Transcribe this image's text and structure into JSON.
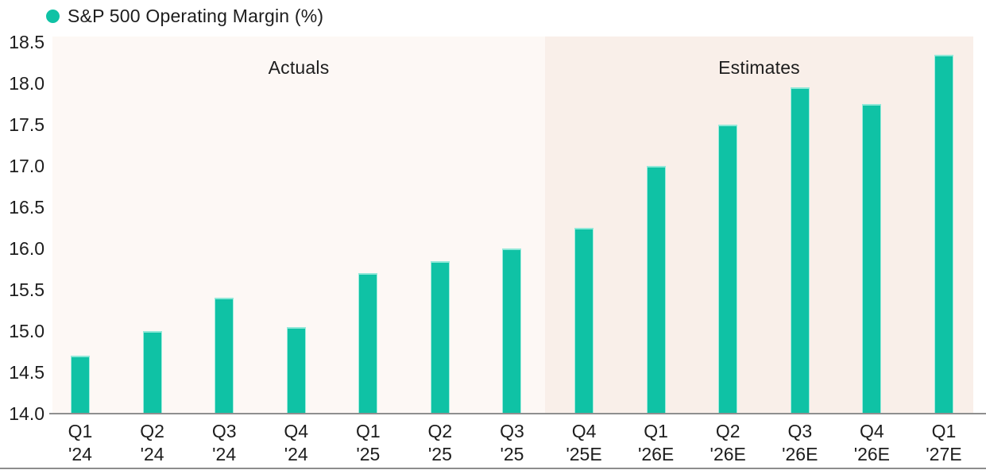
{
  "legend": {
    "label": "S&P 500 Operating Margin (%)",
    "marker_color": "#0fc2a5"
  },
  "regions": {
    "actuals": "Actuals",
    "estimates": "Estimates"
  },
  "chart_data": {
    "type": "bar",
    "title": "S&P 500 Operating Margin (%)",
    "legend_entries": [
      "S&P 500 Operating Margin (%)"
    ],
    "legend_position": "top-left",
    "categories": [
      "Q1 '24",
      "Q2 '24",
      "Q3 '24",
      "Q4 '24",
      "Q1 '25",
      "Q2 '25",
      "Q3 '25",
      "Q4 '25E",
      "Q1 '26E",
      "Q2 '26E",
      "Q3 '26E",
      "Q4 '26E",
      "Q1 '27E"
    ],
    "category_lines": [
      [
        "Q1",
        "'24"
      ],
      [
        "Q2",
        "'24"
      ],
      [
        "Q3",
        "'24"
      ],
      [
        "Q4",
        "'24"
      ],
      [
        "Q1",
        "'25"
      ],
      [
        "Q2",
        "'25"
      ],
      [
        "Q3",
        "'25"
      ],
      [
        "Q4",
        "'25E"
      ],
      [
        "Q1",
        "'26E"
      ],
      [
        "Q2",
        "'26E"
      ],
      [
        "Q3",
        "'26E"
      ],
      [
        "Q4",
        "'26E"
      ],
      [
        "Q1",
        "'27E"
      ]
    ],
    "values": [
      14.7,
      15.0,
      15.4,
      15.05,
      15.7,
      15.85,
      16.0,
      16.25,
      17.0,
      17.5,
      17.95,
      17.75,
      18.35
    ],
    "ylim": [
      14.0,
      18.5
    ],
    "y_tick_labels": [
      "18.5",
      "18.0",
      "17.5",
      "17.0",
      "16.5",
      "16.0",
      "15.5",
      "15.0",
      "14.5",
      "14.0"
    ],
    "grid": false,
    "annotations": [
      {
        "label": "Actuals",
        "span": "Q1 '24 to Q3 '25"
      },
      {
        "label": "Estimates",
        "span": "Q4 '25E to Q1 '27E"
      }
    ],
    "bar_color": "#0fc2a5",
    "actuals_background": "#fdf8f5",
    "estimates_background": "#f9efe9"
  }
}
